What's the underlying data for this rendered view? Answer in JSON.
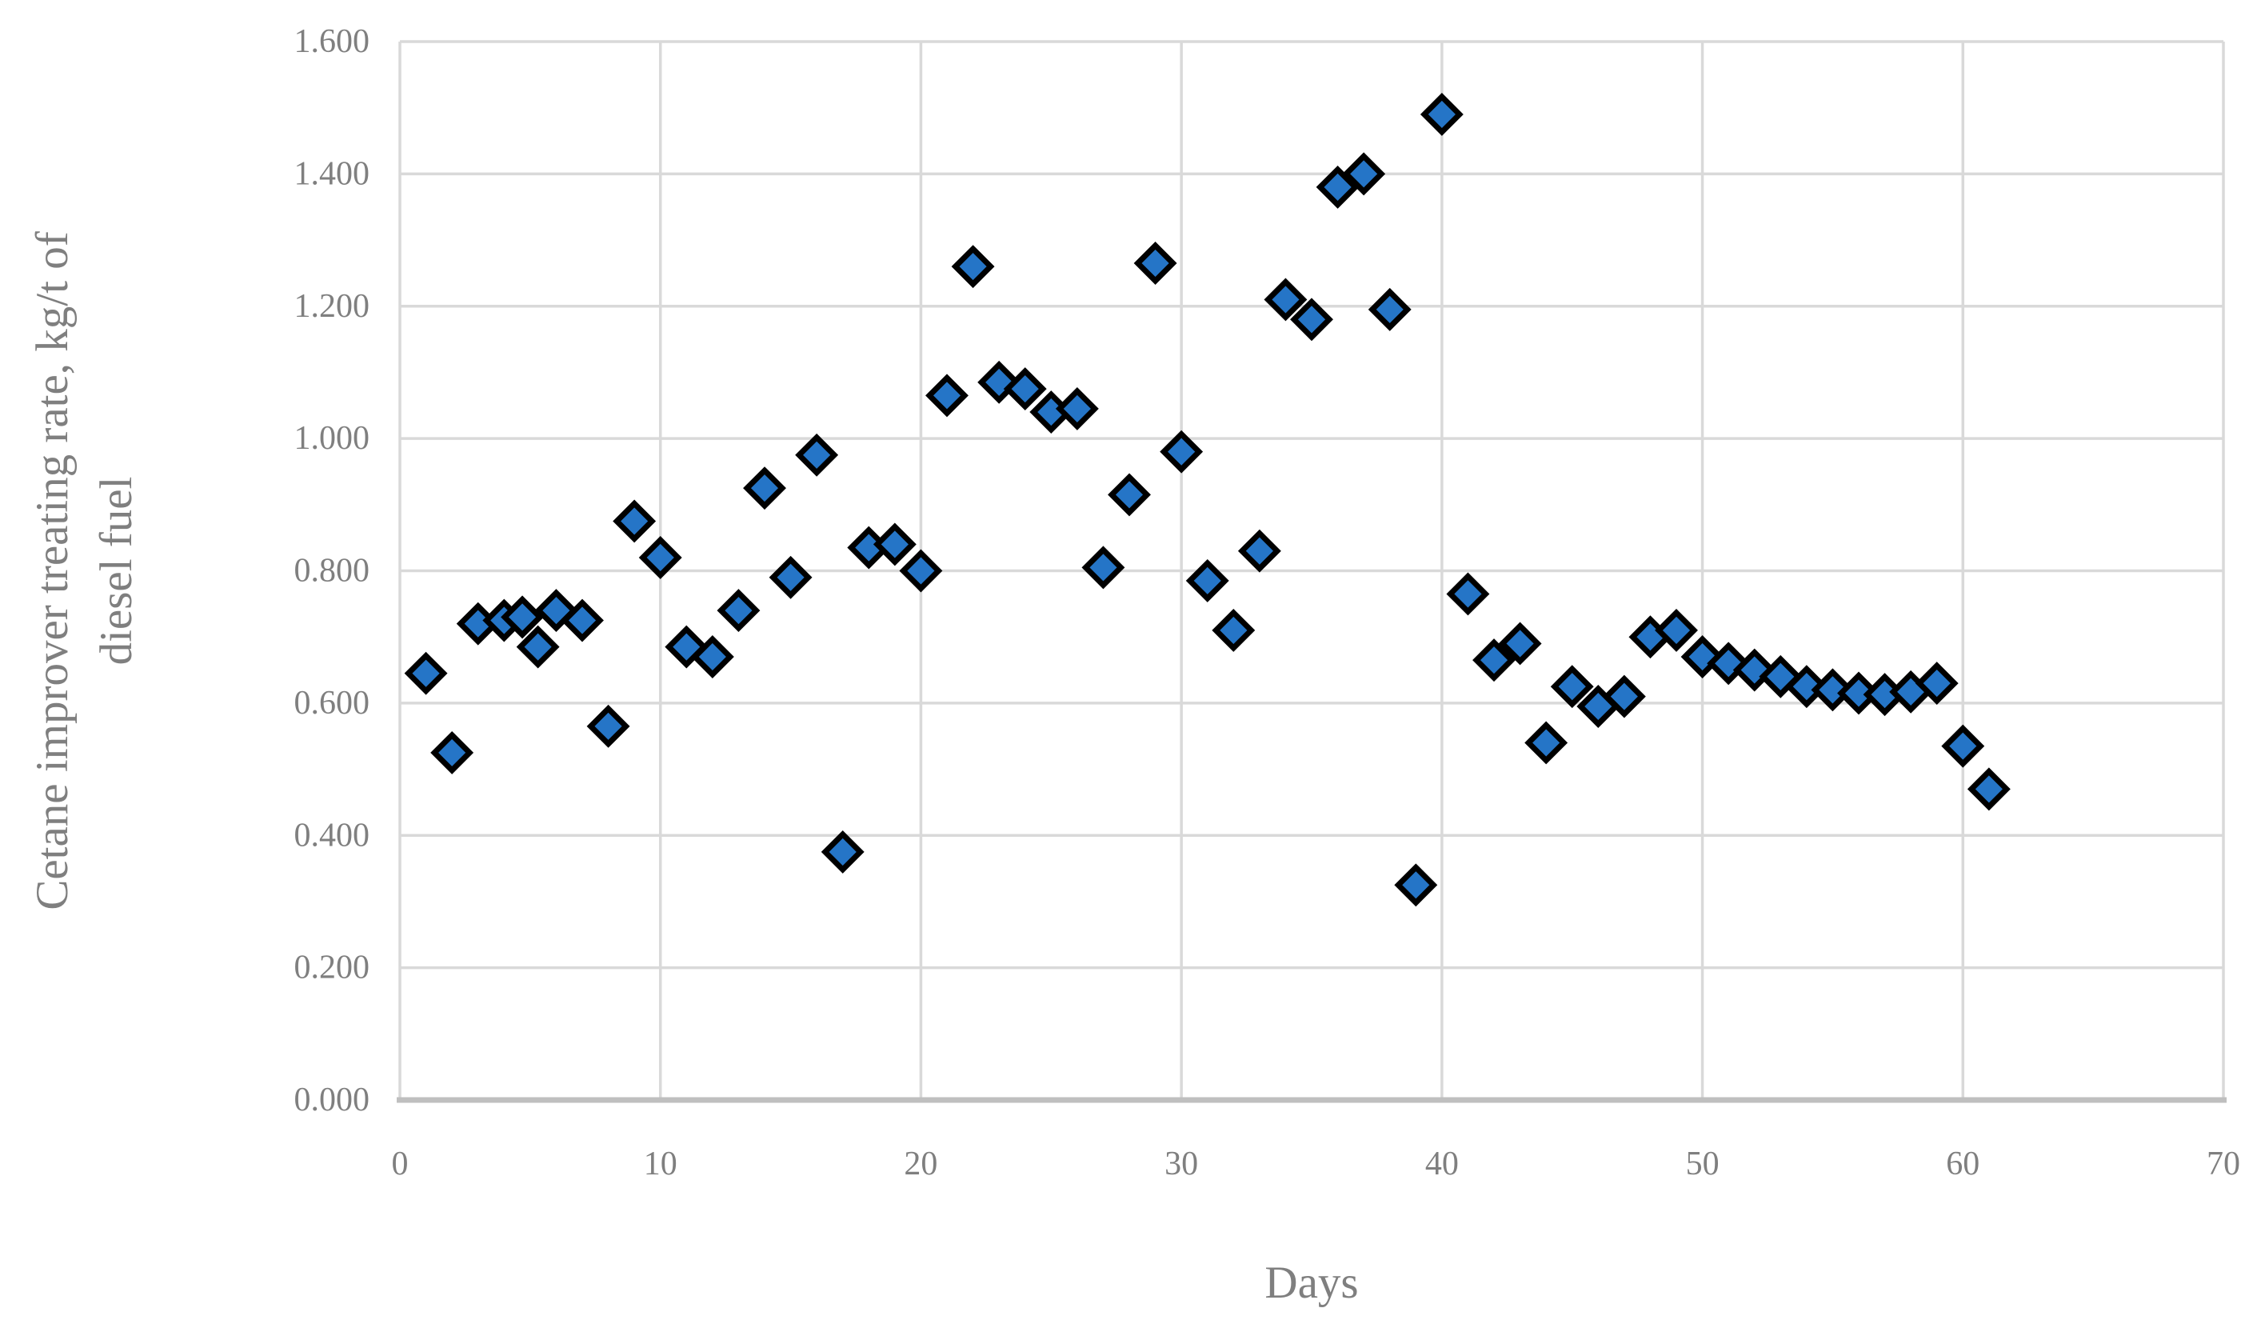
{
  "chart_data": {
    "type": "scatter",
    "title": "",
    "xlabel": "Days",
    "ylabel": "Cetane improver treating rate, kg/t of diesel fuel",
    "ylabel_line1": "Cetane improver treating rate, kg/t of",
    "ylabel_line2": "diesel fuel",
    "xlim": [
      0,
      70
    ],
    "ylim": [
      0,
      1.6
    ],
    "x_tick_labels": [
      "0",
      "10",
      "20",
      "30",
      "40",
      "50",
      "60",
      "70"
    ],
    "y_tick_labels": [
      "0.000",
      "0.200",
      "0.400",
      "0.600",
      "0.800",
      "1.000",
      "1.200",
      "1.400",
      "1.600"
    ],
    "grid": true,
    "legend": "none",
    "marker": {
      "shape": "diamond",
      "fill": "#2575C7",
      "stroke": "#000000"
    },
    "points": [
      [
        1,
        0.645
      ],
      [
        2,
        0.525
      ],
      [
        3,
        0.72
      ],
      [
        4,
        0.725
      ],
      [
        4.7,
        0.73
      ],
      [
        5.3,
        0.685
      ],
      [
        6,
        0.74
      ],
      [
        7,
        0.725
      ],
      [
        8,
        0.565
      ],
      [
        9,
        0.875
      ],
      [
        10,
        0.82
      ],
      [
        11,
        0.685
      ],
      [
        12,
        0.67
      ],
      [
        13,
        0.74
      ],
      [
        14,
        0.925
      ],
      [
        15,
        0.79
      ],
      [
        16,
        0.975
      ],
      [
        17,
        0.375
      ],
      [
        18,
        0.835
      ],
      [
        19,
        0.84
      ],
      [
        20,
        0.8
      ],
      [
        21,
        1.065
      ],
      [
        22,
        1.26
      ],
      [
        23,
        1.085
      ],
      [
        24,
        1.075
      ],
      [
        25,
        1.04
      ],
      [
        26,
        1.045
      ],
      [
        27,
        0.805
      ],
      [
        28,
        0.915
      ],
      [
        29,
        1.265
      ],
      [
        30,
        0.98
      ],
      [
        31,
        0.785
      ],
      [
        32,
        0.71
      ],
      [
        33,
        0.83
      ],
      [
        34,
        1.21
      ],
      [
        35,
        1.18
      ],
      [
        36,
        1.38
      ],
      [
        37,
        1.4
      ],
      [
        38,
        1.195
      ],
      [
        39,
        0.325
      ],
      [
        40,
        1.49
      ],
      [
        41,
        0.765
      ],
      [
        42,
        0.665
      ],
      [
        43,
        0.69
      ],
      [
        44,
        0.54
      ],
      [
        45,
        0.625
      ],
      [
        46,
        0.595
      ],
      [
        47,
        0.61
      ],
      [
        48,
        0.7
      ],
      [
        49,
        0.71
      ],
      [
        50,
        0.67
      ],
      [
        51,
        0.66
      ],
      [
        52,
        0.65
      ],
      [
        53,
        0.64
      ],
      [
        54,
        0.625
      ],
      [
        55,
        0.62
      ],
      [
        56,
        0.615
      ],
      [
        57,
        0.613
      ],
      [
        58,
        0.617
      ],
      [
        59,
        0.63
      ],
      [
        60,
        0.535
      ],
      [
        61,
        0.47
      ]
    ]
  },
  "colors": {
    "marker_fill": "#2575C7",
    "marker_stroke": "#000000",
    "gridline": "#D9D9D9",
    "axis_line": "#BFBFBF",
    "text": "#7F7F7F",
    "background": "#FFFFFF"
  }
}
